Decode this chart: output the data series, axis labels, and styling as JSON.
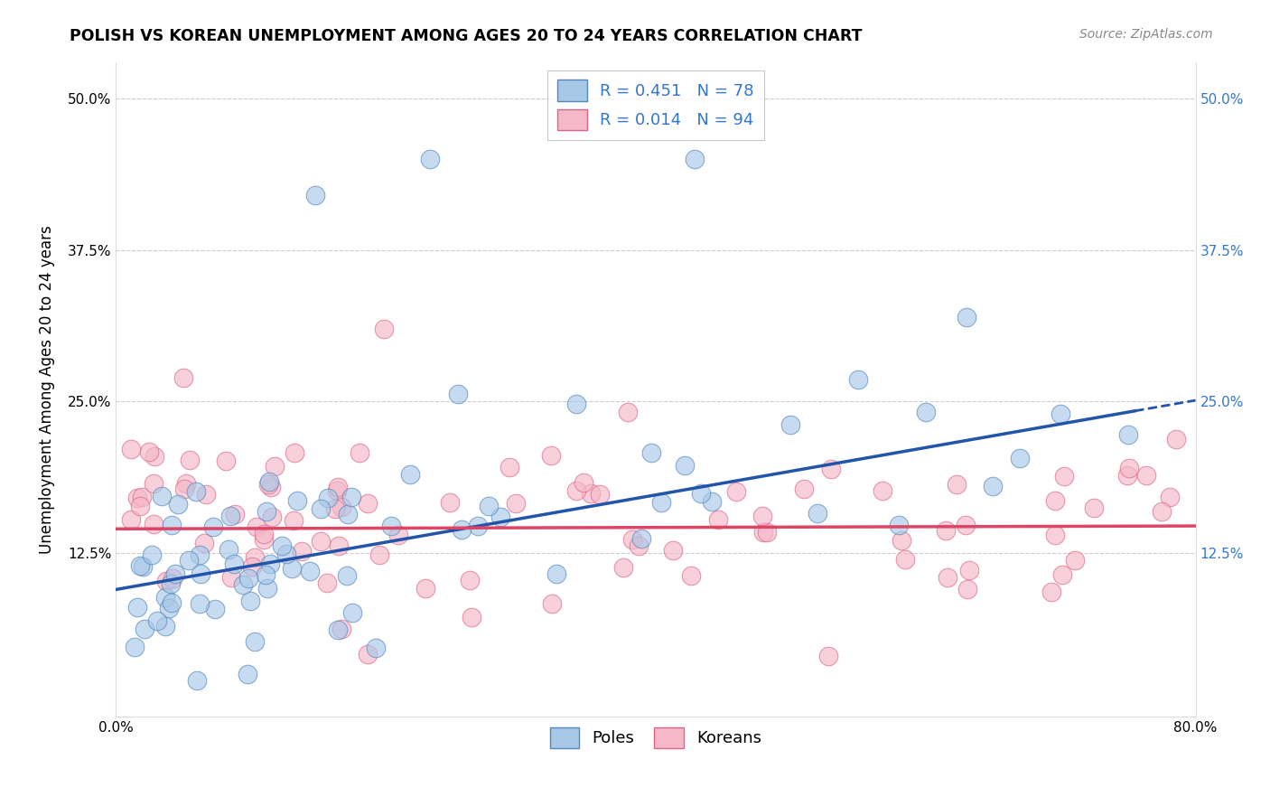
{
  "title": "POLISH VS KOREAN UNEMPLOYMENT AMONG AGES 20 TO 24 YEARS CORRELATION CHART",
  "source": "Source: ZipAtlas.com",
  "ylabel": "Unemployment Among Ages 20 to 24 years",
  "xlim": [
    0.0,
    0.8
  ],
  "ylim": [
    -0.01,
    0.53
  ],
  "poles_color": "#a8c8e8",
  "koreans_color": "#f4b8c8",
  "poles_edge_color": "#5588bb",
  "koreans_edge_color": "#dd6688",
  "poles_trend_color": "#2255aa",
  "koreans_trend_color": "#dd4466",
  "background_color": "#ffffff",
  "grid_color": "#cccccc",
  "poles_R": 0.451,
  "poles_N": 78,
  "koreans_R": 0.014,
  "koreans_N": 94
}
